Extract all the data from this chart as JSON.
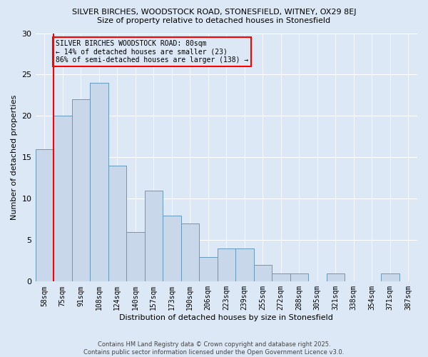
{
  "title1": "SILVER BIRCHES, WOODSTOCK ROAD, STONESFIELD, WITNEY, OX29 8EJ",
  "title2": "Size of property relative to detached houses in Stonesfield",
  "xlabel": "Distribution of detached houses by size in Stonesfield",
  "ylabel": "Number of detached properties",
  "categories": [
    "58sqm",
    "75sqm",
    "91sqm",
    "108sqm",
    "124sqm",
    "140sqm",
    "157sqm",
    "173sqm",
    "190sqm",
    "206sqm",
    "223sqm",
    "239sqm",
    "255sqm",
    "272sqm",
    "288sqm",
    "305sqm",
    "321sqm",
    "338sqm",
    "354sqm",
    "371sqm",
    "387sqm"
  ],
  "values": [
    16,
    20,
    22,
    24,
    14,
    6,
    11,
    8,
    7,
    3,
    4,
    4,
    2,
    1,
    1,
    0,
    1,
    0,
    0,
    1,
    0
  ],
  "bar_color": "#c8d8ea",
  "bar_edge_color": "#6699bb",
  "red_line_x": 0.5,
  "annotation_text": "SILVER BIRCHES WOODSTOCK ROAD: 80sqm\n← 14% of detached houses are smaller (23)\n86% of semi-detached houses are larger (138) →",
  "footer_text": "Contains HM Land Registry data © Crown copyright and database right 2025.\nContains public sector information licensed under the Open Government Licence v3.0.",
  "ylim": [
    0,
    30
  ],
  "bg_color": "#dce8f5"
}
